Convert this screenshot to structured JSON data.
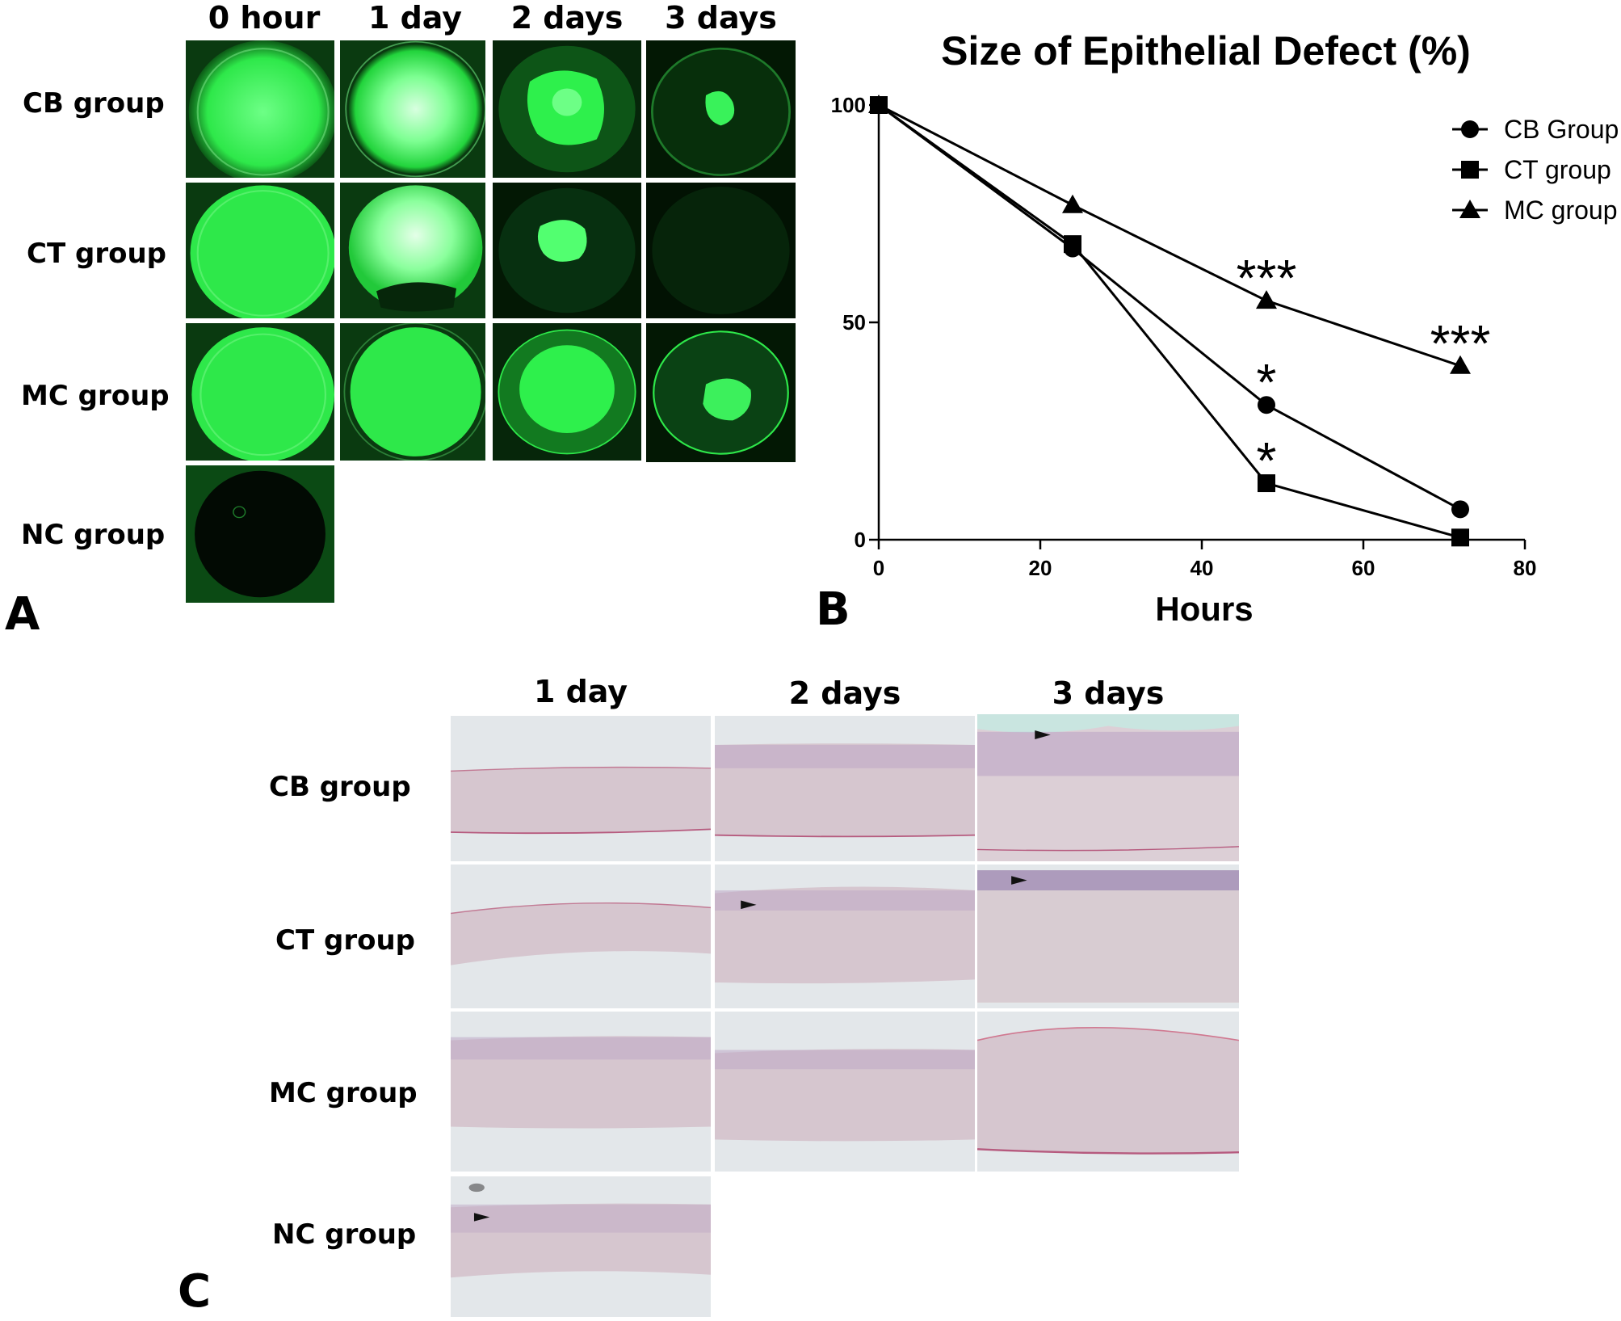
{
  "panel_a": {
    "letter": "A",
    "columns": [
      "0 hour",
      "1 day",
      "2 days",
      "3 days"
    ],
    "rows": [
      "CB group",
      "CT group",
      "MC group",
      "NC group"
    ]
  },
  "panel_b": {
    "letter": "B"
  },
  "panel_c": {
    "letter": "C",
    "columns": [
      "1 day",
      "2 days",
      "3 days"
    ],
    "rows": [
      "CB group",
      "CT group",
      "MC group",
      "NC group"
    ]
  },
  "chart_data": {
    "type": "line",
    "title": "Size of Epithelial Defect (%)",
    "xlabel": "Hours",
    "ylabel": "",
    "xlim": [
      0,
      80
    ],
    "ylim": [
      0,
      100
    ],
    "x_ticks": [
      "0",
      "20",
      "40",
      "60",
      "80"
    ],
    "y_ticks": [
      "0",
      "50",
      "100"
    ],
    "grid": false,
    "legend_position": "top-right",
    "x": [
      0,
      24,
      48,
      72
    ],
    "series": [
      {
        "name": "CB Group",
        "marker": "circle",
        "values": [
          100,
          67,
          31,
          7
        ]
      },
      {
        "name": "CT group",
        "marker": "square",
        "values": [
          100,
          68,
          13,
          0.5
        ]
      },
      {
        "name": "MC group",
        "marker": "triangle",
        "values": [
          100,
          77,
          55,
          40
        ]
      }
    ],
    "annotations": [
      {
        "text": "***",
        "x": 48,
        "y": 55
      },
      {
        "text": "***",
        "x": 72,
        "y": 40
      },
      {
        "text": "*",
        "x": 48,
        "y": 31
      },
      {
        "text": "*",
        "x": 48,
        "y": 13
      }
    ]
  },
  "colors": {
    "fluorescein_green": "#2ee84a",
    "dark_green": "#041a06",
    "he_background": "#e3e7ea",
    "he_stroma": "#d8c8d0",
    "he_nuclei": "#5a4a8a",
    "arrowhead": "#111111"
  }
}
